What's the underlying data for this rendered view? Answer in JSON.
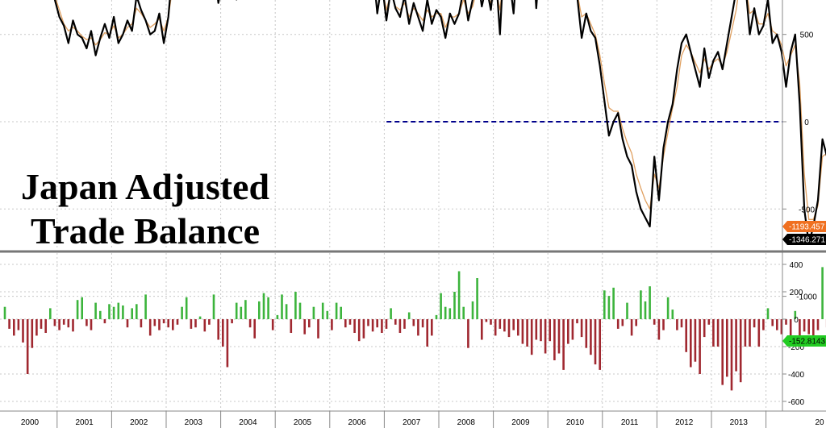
{
  "title_lines": [
    "Japan Adjusted",
    "Trade Balance"
  ],
  "colors": {
    "series_main": "#000000",
    "series_alt": "#e0a060",
    "positive_bar": "#3cb43c",
    "negative_bar": "#a02830",
    "zero_line": "#00008b",
    "tag_alt_bg": "#f07020",
    "tag_main_bg": "#000000",
    "tag_bar_bg": "#22cc22"
  },
  "last_value_tags": {
    "alt": "-1193.457",
    "main": "-1346.271",
    "bar": "-152.8143"
  },
  "chart_data": [
    {
      "type": "line",
      "title": "Japan Adjusted Trade Balance",
      "x_tick_labels": [
        "2000",
        "2001",
        "2002",
        "2003",
        "2004",
        "2005",
        "2006",
        "2007",
        "2008",
        "2009",
        "2010",
        "2011",
        "2012",
        "2013",
        "20"
      ],
      "y_tick_labels": [
        "1000",
        "500",
        "0",
        "-500",
        "-1000"
      ],
      "ylim": [
        -1300,
        1300
      ],
      "grid": true,
      "x_start": 2000.0,
      "x_step": 0.0833,
      "reference_line": {
        "y": 0,
        "x_from": 2007.0,
        "style": "dashed"
      },
      "series": [
        {
          "name": "",
          "role": "main",
          "values": [
            960,
            1050,
            920,
            1010,
            880,
            1000,
            900,
            1040,
            960,
            900,
            780,
            700,
            600,
            550,
            450,
            580,
            500,
            480,
            420,
            520,
            380,
            480,
            560,
            480,
            600,
            450,
            500,
            580,
            520,
            720,
            640,
            580,
            500,
            520,
            620,
            450,
            600,
            900,
            820,
            980,
            750,
            1000,
            850,
            780,
            960,
            820,
            900,
            680,
            820,
            860,
            780,
            700,
            800,
            900,
            760,
            880,
            720,
            880,
            1000,
            940,
            920,
            1050,
            1100,
            980,
            1100,
            960,
            1150,
            1050,
            1180,
            1100,
            1050,
            1150,
            1080,
            1000,
            1000,
            950,
            900,
            1050,
            820,
            980,
            740,
            900,
            620,
            800,
            580,
            760,
            650,
            600,
            720,
            560,
            680,
            600,
            520,
            700,
            560,
            640,
            600,
            480,
            620,
            560,
            620,
            760,
            580,
            700,
            840,
            660,
            780,
            640,
            880,
            500,
            1000,
            840,
            620,
            1000,
            760,
            1200,
            1100,
            650,
            1000,
            880,
            1050,
            1100,
            720,
            800,
            1000,
            800,
            720,
            480,
            620,
            520,
            480,
            320,
            120,
            -80,
            0,
            50,
            -100,
            -200,
            -250,
            -400,
            -500,
            -550,
            -600,
            -200,
            -450,
            -150,
            0,
            100,
            300,
            450,
            500,
            400,
            300,
            200,
            420,
            250,
            350,
            400,
            300,
            450,
            600,
            750,
            900,
            800,
            500,
            650,
            500,
            550,
            700,
            450,
            500,
            400,
            200,
            400,
            500,
            100,
            -500,
            -700,
            -600,
            -450,
            -100,
            -200,
            -50,
            -300,
            -350,
            -600,
            -450,
            -250,
            -600,
            -450,
            -350,
            -500,
            -400,
            -300,
            -550,
            -650,
            -1000,
            -550,
            -850,
            -700,
            -1000,
            -600,
            -1050,
            -800,
            -700,
            -1050,
            -850,
            -750,
            -800,
            -650,
            -950,
            -700,
            -900,
            -850,
            -1150,
            -1100,
            -1346
          ]
        },
        {
          "name": "",
          "role": "alt",
          "values": [
            900,
            980,
            940,
            950,
            900,
            960,
            920,
            980,
            940,
            880,
            800,
            720,
            640,
            560,
            520,
            540,
            520,
            490,
            470,
            480,
            440,
            470,
            510,
            500,
            550,
            480,
            500,
            540,
            560,
            650,
            620,
            580,
            540,
            560,
            590,
            520,
            600,
            780,
            800,
            880,
            800,
            900,
            860,
            820,
            880,
            840,
            860,
            760,
            800,
            820,
            800,
            760,
            800,
            840,
            790,
            840,
            780,
            860,
            920,
            940,
            940,
            1000,
            1040,
            1000,
            1060,
            1000,
            1080,
            1060,
            1120,
            1100,
            1080,
            1100,
            1060,
            1020,
            1000,
            960,
            940,
            980,
            880,
            920,
            800,
            860,
            700,
            780,
            640,
            740,
            660,
            640,
            680,
            600,
            650,
            620,
            580,
            640,
            600,
            620,
            620,
            540,
            600,
            600,
            620,
            700,
            620,
            660,
            760,
            700,
            740,
            680,
            780,
            640,
            880,
            860,
            720,
            920,
            820,
            1080,
            1050,
            780,
            940,
            900,
            1000,
            1020,
            820,
            840,
            920,
            820,
            740,
            600,
            620,
            560,
            500,
            380,
            220,
            80,
            60,
            60,
            -40,
            -120,
            -180,
            -300,
            -380,
            -450,
            -500,
            -300,
            -380,
            -200,
            -60,
            80,
            200,
            380,
            440,
            400,
            340,
            280,
            360,
            300,
            340,
            360,
            320,
            400,
            520,
            640,
            820,
            800,
            620,
            640,
            560,
            560,
            620,
            520,
            500,
            440,
            320,
            380,
            440,
            220,
            -300,
            -560,
            -560,
            -480,
            -200,
            -180,
            -100,
            -240,
            -300,
            -480,
            -420,
            -300,
            -480,
            -420,
            -360,
            -440,
            -380,
            -320,
            -480,
            -560,
            -800,
            -620,
            -760,
            -680,
            -880,
            -680,
            -920,
            -780,
            -700,
            -940,
            -820,
            -760,
            -780,
            -700,
            -860,
            -740,
            -840,
            -820,
            -1060,
            -1080,
            -1193
          ]
        }
      ]
    },
    {
      "type": "bar",
      "title": "",
      "y_tick_labels": [
        "400",
        "200",
        "0",
        "-200",
        "-400",
        "-600"
      ],
      "ylim": [
        -650,
        450
      ],
      "grid": true,
      "x_start": 2000.0,
      "x_step": 0.0833,
      "values": [
        90,
        -70,
        -120,
        -80,
        -170,
        -400,
        -210,
        -120,
        -70,
        -100,
        80,
        -50,
        -80,
        -40,
        -60,
        -90,
        140,
        160,
        -50,
        -80,
        120,
        60,
        -30,
        110,
        90,
        120,
        100,
        -60,
        80,
        110,
        -60,
        180,
        -120,
        -50,
        -80,
        -30,
        -60,
        -80,
        -40,
        90,
        160,
        -70,
        -60,
        20,
        -90,
        -40,
        180,
        -150,
        -200,
        -350,
        -30,
        120,
        90,
        140,
        -60,
        -140,
        130,
        190,
        160,
        -80,
        30,
        180,
        110,
        -100,
        200,
        120,
        -110,
        -60,
        90,
        -140,
        120,
        60,
        -80,
        120,
        90,
        -60,
        -40,
        -100,
        -160,
        -140,
        -50,
        -90,
        -60,
        -100,
        -70,
        80,
        -40,
        -100,
        -70,
        50,
        -50,
        -120,
        -60,
        -200,
        -120,
        30,
        190,
        90,
        80,
        200,
        350,
        90,
        -210,
        130,
        300,
        -150,
        -20,
        -40,
        -120,
        -70,
        -90,
        -130,
        -80,
        -120,
        -180,
        -200,
        -260,
        -150,
        -160,
        -250,
        -160,
        -300,
        -250,
        -370,
        -180,
        -150,
        -30,
        -130,
        -210,
        -260,
        -330,
        -370,
        210,
        170,
        230,
        -70,
        -50,
        120,
        -120,
        -50,
        210,
        130,
        240,
        -40,
        -150,
        -80,
        160,
        70,
        -80,
        -60,
        -240,
        -350,
        -310,
        -400,
        -130,
        -40,
        -200,
        -200,
        -480,
        -420,
        -520,
        -380,
        -460,
        -200,
        -200,
        -60,
        -200,
        -80,
        80,
        -50,
        -80,
        -110,
        -40,
        -120,
        60,
        -190,
        -90,
        -110,
        -160,
        -80,
        380,
        -60,
        -110,
        -50,
        -160,
        120,
        -60,
        -130,
        -120,
        -160,
        -90,
        -30,
        -190,
        -100,
        -160,
        30,
        -80,
        60,
        -150,
        -100,
        -90,
        -40,
        40,
        -220,
        -130,
        -120,
        -40,
        -200,
        -90,
        -200,
        -180,
        -153
      ]
    }
  ]
}
